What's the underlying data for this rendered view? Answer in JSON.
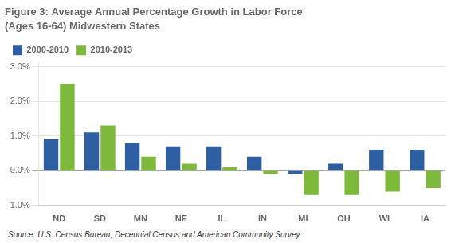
{
  "chart_data": {
    "type": "bar",
    "title": "Figure 3: Average Annual Percentage Growth in Labor Force",
    "subtitle": "(Ages 16-64) Midwestern States",
    "annotations": [
      "Source: U.S. Census Bureau, Decennial Census and American Community Survey"
    ],
    "categories": [
      "ND",
      "SD",
      "MN",
      "NE",
      "IL",
      "IN",
      "MI",
      "OH",
      "WI",
      "IA"
    ],
    "series": [
      {
        "name": "2000-2010",
        "color": "#2E5FA3",
        "values": [
          0.009,
          0.011,
          0.008,
          0.007,
          0.007,
          0.004,
          -0.001,
          0.002,
          0.006,
          0.006
        ]
      },
      {
        "name": "2010-2013",
        "color": "#7DB93B",
        "values": [
          0.025,
          0.013,
          0.004,
          0.002,
          0.001,
          -0.001,
          -0.007,
          -0.007,
          -0.006,
          -0.005
        ]
      }
    ],
    "ylim": [
      -0.01,
      0.031
    ],
    "yticks": [
      {
        "value": -0.01,
        "label": "-1.0%"
      },
      {
        "value": 0.0,
        "label": "0.0%"
      },
      {
        "value": 0.01,
        "label": "1.0%"
      },
      {
        "value": 0.02,
        "label": "2.0%"
      },
      {
        "value": 0.03,
        "label": "3.0%"
      }
    ],
    "grid": "y",
    "legend": "upper left"
  }
}
